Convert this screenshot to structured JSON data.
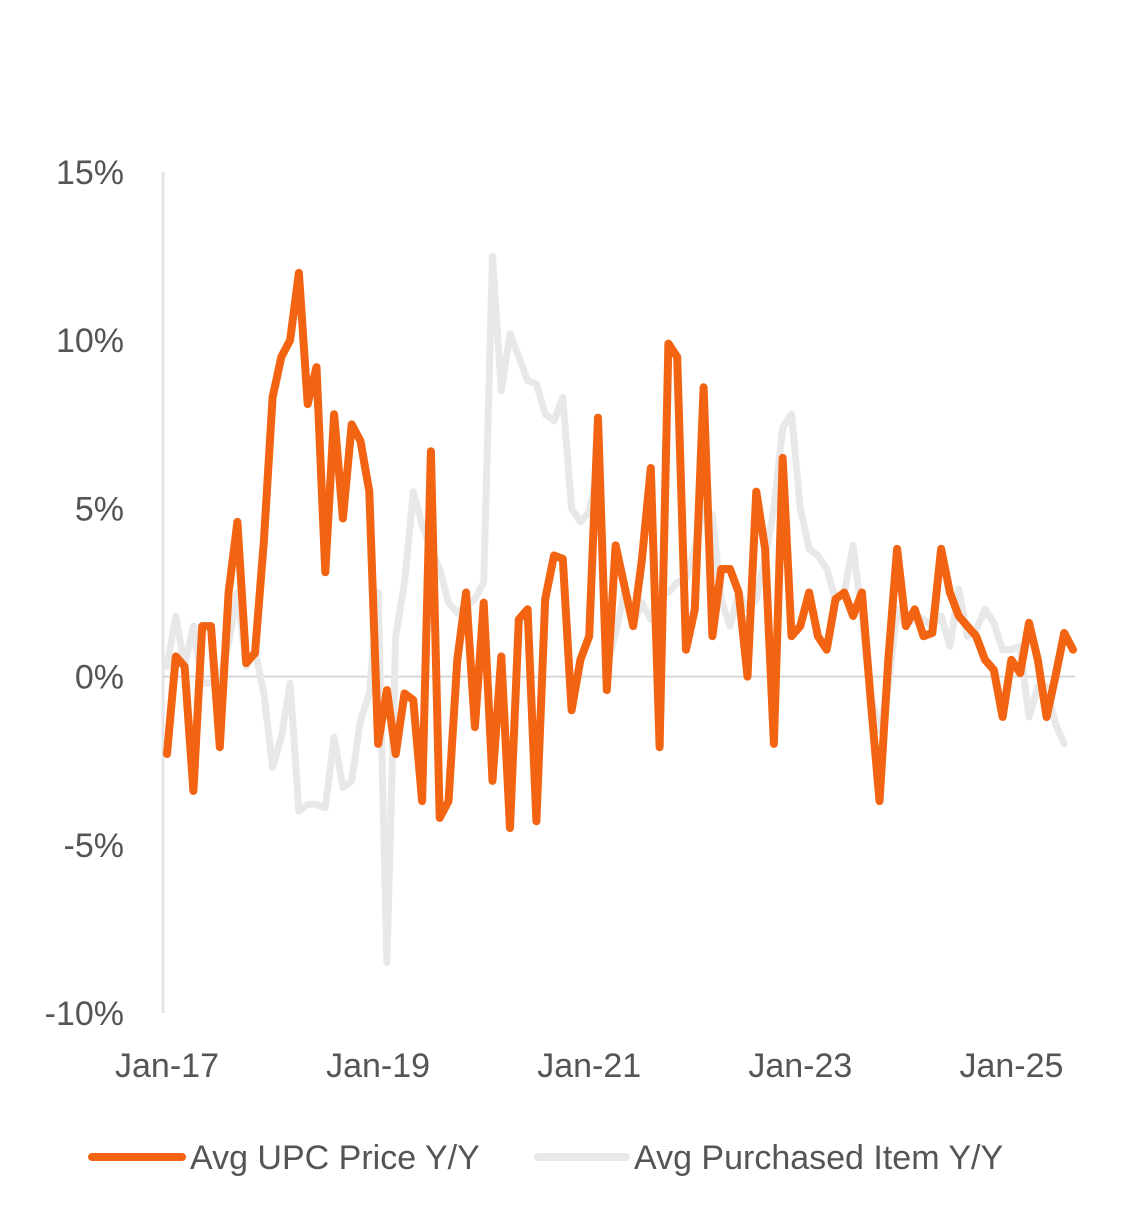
{
  "chart_data": {
    "type": "line",
    "title": "",
    "xlabel": "",
    "ylabel": "",
    "ylim": [
      -10,
      15
    ],
    "y_ticks": [
      {
        "value": 15,
        "label": "15%"
      },
      {
        "value": 10,
        "label": "10%"
      },
      {
        "value": 5,
        "label": "5%"
      },
      {
        "value": 0,
        "label": "0%"
      },
      {
        "value": -5,
        "label": "-5%"
      },
      {
        "value": -10,
        "label": "-10%"
      }
    ],
    "x_start": "2017-01",
    "x_ticks": [
      {
        "index": 0,
        "label": "Jan-17"
      },
      {
        "index": 24,
        "label": "Jan-19"
      },
      {
        "index": 48,
        "label": "Jan-21"
      },
      {
        "index": 72,
        "label": "Jan-23"
      },
      {
        "index": 96,
        "label": "Jan-25"
      }
    ],
    "grid": false,
    "legend_position": "bottom",
    "series": [
      {
        "name": "Avg UPC Price Y/Y",
        "color": "#F26412",
        "values": [
          -2.3,
          0.6,
          0.3,
          -3.4,
          1.5,
          1.5,
          -2.1,
          2.5,
          4.6,
          0.4,
          0.7,
          4.0,
          8.3,
          9.5,
          10.0,
          12.0,
          8.1,
          9.2,
          3.1,
          7.8,
          4.7,
          7.5,
          7.0,
          5.5,
          -2.0,
          -0.4,
          -2.3,
          -0.5,
          -0.7,
          -3.7,
          6.7,
          -4.2,
          -3.7,
          0.5,
          2.5,
          -1.5,
          2.2,
          -3.1,
          0.6,
          -4.5,
          1.7,
          2.0,
          -4.3,
          2.3,
          3.6,
          3.5,
          -1.0,
          0.5,
          1.2,
          7.7,
          -0.4,
          3.9,
          2.7,
          1.5,
          3.5,
          6.2,
          -2.1,
          9.9,
          9.5,
          0.8,
          2.0,
          8.6,
          1.2,
          3.2,
          3.2,
          2.5,
          0.0,
          5.5,
          3.8,
          -2.0,
          6.5,
          1.2,
          1.5,
          2.5,
          1.2,
          0.8,
          2.3,
          2.5,
          1.8,
          2.5,
          -0.7,
          -3.7,
          0.5,
          3.8,
          1.5,
          2.0,
          1.2,
          1.3,
          3.8,
          2.5,
          1.8,
          1.5,
          1.2,
          0.5,
          0.2,
          -1.2,
          0.5,
          0.1,
          1.6,
          0.5,
          -1.2,
          0.0,
          1.3,
          0.8
        ]
      },
      {
        "name": "Avg Purchased Item Y/Y",
        "color": "#E8E8E8",
        "values": [
          0.3,
          1.8,
          0.3,
          1.5,
          -0.2,
          -0.2,
          0.0,
          1.0,
          2.5,
          0.3,
          0.8,
          -0.5,
          -2.7,
          -1.8,
          -0.2,
          -4.0,
          -3.8,
          -3.8,
          -3.9,
          -1.8,
          -3.3,
          -3.1,
          -1.3,
          -0.5,
          2.5,
          -8.5,
          1.2,
          2.8,
          5.5,
          4.5,
          3.8,
          3.2,
          2.2,
          1.9,
          2.1,
          2.3,
          2.8,
          12.5,
          8.5,
          10.2,
          9.5,
          8.8,
          8.7,
          7.8,
          7.6,
          8.3,
          5.0,
          4.6,
          4.9,
          6.2,
          0.3,
          1.3,
          2.5,
          1.6,
          2.2,
          1.7,
          2.5,
          2.5,
          2.8,
          2.9,
          3.8,
          5.0,
          4.8,
          2.3,
          1.5,
          2.5,
          2.0,
          2.3,
          3.5,
          5.0,
          7.4,
          7.8,
          5.0,
          3.8,
          3.6,
          3.2,
          2.3,
          2.5,
          3.9,
          1.8,
          -0.6,
          -1.6,
          -0.3,
          2.0,
          1.5,
          1.8,
          1.7,
          1.5,
          1.8,
          0.9,
          2.6,
          1.2,
          1.4,
          2.0,
          1.6,
          0.8,
          0.8,
          0.9,
          -1.2,
          -0.3,
          -0.3,
          -1.4,
          -2.0
        ]
      }
    ]
  }
}
